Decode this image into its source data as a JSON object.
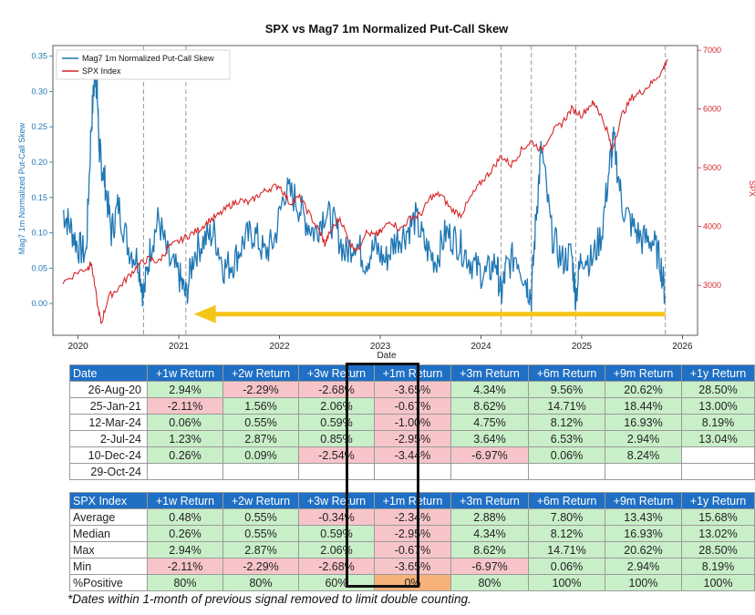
{
  "chart_data": {
    "type": "line",
    "title": "SPX vs Mag7 1m Normalized Put-Call Skew",
    "xlabel": "Date",
    "ylabel_left": "Mag7 1m Normalized Put-Call Skew",
    "ylabel_right": "SPX",
    "xlim": [
      2019.75,
      2026.15
    ],
    "ylim_left": [
      -0.045,
      0.365
    ],
    "ylim_right": [
      2150,
      7080
    ],
    "x_ticks": [
      "2020",
      "2021",
      "2022",
      "2023",
      "2024",
      "2025",
      "2026"
    ],
    "y_ticks_left": [
      "0.00",
      "0.05",
      "0.10",
      "0.15",
      "0.20",
      "0.25",
      "0.30",
      "0.35"
    ],
    "y_ticks_right": [
      "3000",
      "4000",
      "5000",
      "6000",
      "7000"
    ],
    "legend_position": "top-left",
    "colors": {
      "skew": "#1f77b4",
      "spx": "#d62728",
      "arrow": "#f5c518",
      "signal_line": "#999999"
    },
    "signal_dates": [
      2020.65,
      2021.07,
      2024.2,
      2024.5,
      2024.94,
      2025.83
    ],
    "arrow": {
      "x_start": 2025.83,
      "x_end": 2021.15,
      "y": -0.015
    },
    "series": [
      {
        "name": "Mag7 1m Normalized Put-Call Skew",
        "axis": "left",
        "x": [
          2019.85,
          2019.92,
          2020.0,
          2020.08,
          2020.13,
          2020.17,
          2020.19,
          2020.21,
          2020.23,
          2020.27,
          2020.33,
          2020.4,
          2020.5,
          2020.6,
          2020.65,
          2020.72,
          2020.8,
          2020.9,
          2021.0,
          2021.07,
          2021.15,
          2021.25,
          2021.35,
          2021.45,
          2021.55,
          2021.65,
          2021.75,
          2021.85,
          2021.95,
          2022.05,
          2022.15,
          2022.25,
          2022.35,
          2022.45,
          2022.55,
          2022.65,
          2022.75,
          2022.85,
          2022.95,
          2023.05,
          2023.15,
          2023.25,
          2023.35,
          2023.45,
          2023.55,
          2023.65,
          2023.75,
          2023.85,
          2023.95,
          2024.05,
          2024.15,
          2024.2,
          2024.25,
          2024.35,
          2024.45,
          2024.5,
          2024.55,
          2024.6,
          2024.7,
          2024.8,
          2024.9,
          2024.94,
          2025.0,
          2025.1,
          2025.2,
          2025.28,
          2025.32,
          2025.4,
          2025.5,
          2025.6,
          2025.7,
          2025.78,
          2025.83
        ],
        "values": [
          0.13,
          0.11,
          0.08,
          0.07,
          0.25,
          0.33,
          0.3,
          0.22,
          0.2,
          0.17,
          0.1,
          0.14,
          0.08,
          0.06,
          0.01,
          0.08,
          0.12,
          0.06,
          0.04,
          0.01,
          0.07,
          0.09,
          0.1,
          0.05,
          0.06,
          0.09,
          0.1,
          0.07,
          0.09,
          0.16,
          0.15,
          0.12,
          0.1,
          0.13,
          0.11,
          0.07,
          0.09,
          0.06,
          0.08,
          0.06,
          0.09,
          0.1,
          0.12,
          0.08,
          0.06,
          0.1,
          0.09,
          0.07,
          0.05,
          0.04,
          0.06,
          0.01,
          0.05,
          0.07,
          0.03,
          0.01,
          0.13,
          0.22,
          0.1,
          0.06,
          0.07,
          0.01,
          0.07,
          0.06,
          0.1,
          0.2,
          0.23,
          0.14,
          0.11,
          0.09,
          0.09,
          0.06,
          0.01
        ]
      },
      {
        "name": "SPX Index",
        "axis": "right",
        "x": [
          2019.85,
          2020.0,
          2020.1,
          2020.13,
          2020.2,
          2020.23,
          2020.3,
          2020.4,
          2020.5,
          2020.6,
          2020.7,
          2020.8,
          2020.9,
          2021.0,
          2021.1,
          2021.2,
          2021.3,
          2021.4,
          2021.5,
          2021.6,
          2021.7,
          2021.8,
          2021.9,
          2022.0,
          2022.1,
          2022.2,
          2022.3,
          2022.4,
          2022.45,
          2022.5,
          2022.6,
          2022.7,
          2022.78,
          2022.85,
          2022.95,
          2023.0,
          2023.1,
          2023.2,
          2023.3,
          2023.4,
          2023.5,
          2023.6,
          2023.7,
          2023.8,
          2023.9,
          2024.0,
          2024.1,
          2024.2,
          2024.3,
          2024.4,
          2024.5,
          2024.6,
          2024.7,
          2024.8,
          2024.9,
          2025.0,
          2025.1,
          2025.15,
          2025.25,
          2025.3,
          2025.4,
          2025.5,
          2025.6,
          2025.7,
          2025.8,
          2025.85
        ],
        "values": [
          3050,
          3230,
          3300,
          3380,
          2600,
          2350,
          2800,
          2950,
          3150,
          3350,
          3450,
          3400,
          3650,
          3750,
          3850,
          3950,
          4100,
          4200,
          4350,
          4450,
          4400,
          4550,
          4650,
          4700,
          4400,
          4500,
          4200,
          3900,
          3700,
          3900,
          4150,
          3700,
          3600,
          3900,
          3850,
          3900,
          4100,
          3950,
          4150,
          4200,
          4500,
          4550,
          4300,
          4200,
          4500,
          4750,
          4950,
          5200,
          5050,
          5300,
          5450,
          5300,
          5600,
          5750,
          6000,
          5900,
          6100,
          6050,
          5650,
          5300,
          5900,
          6200,
          6300,
          6450,
          6650,
          6850
        ]
      }
    ]
  },
  "table1": {
    "header": [
      "Date",
      "+1w Return",
      "+2w Return",
      "+3w Return",
      "+1m Return",
      "+3m Return",
      "+6m Return",
      "+9m Return",
      "+1y Return"
    ],
    "rows": [
      [
        "26-Aug-20",
        "2.94%",
        "-2.29%",
        "-2.68%",
        "-3.65%",
        "4.34%",
        "9.56%",
        "20.62%",
        "28.50%"
      ],
      [
        "25-Jan-21",
        "-2.11%",
        "1.56%",
        "2.06%",
        "-0.67%",
        "8.62%",
        "14.71%",
        "18.44%",
        "13.00%"
      ],
      [
        "12-Mar-24",
        "0.06%",
        "0.55%",
        "0.59%",
        "-1.00%",
        "4.75%",
        "8.12%",
        "16.93%",
        "8.19%"
      ],
      [
        "2-Jul-24",
        "1.23%",
        "2.87%",
        "0.85%",
        "-2.95%",
        "3.64%",
        "6.53%",
        "2.94%",
        "13.04%"
      ],
      [
        "10-Dec-24",
        "0.26%",
        "0.09%",
        "-2.54%",
        "-3.44%",
        "-6.97%",
        "0.06%",
        "8.24%",
        ""
      ],
      [
        "29-Oct-24",
        "",
        "",
        "",
        "",
        "",
        "",
        "",
        ""
      ]
    ]
  },
  "table2": {
    "header": [
      "SPX Index",
      "+1w Return",
      "+2w Return",
      "+3w Return",
      "+1m Return",
      "+3m Return",
      "+6m Return",
      "+9m Return",
      "+1y Return"
    ],
    "rows": [
      [
        "Average",
        "0.48%",
        "0.55%",
        "-0.34%",
        "-2.34%",
        "2.88%",
        "7.80%",
        "13.43%",
        "15.68%"
      ],
      [
        "Median",
        "0.26%",
        "0.55%",
        "0.59%",
        "-2.95%",
        "4.34%",
        "8.12%",
        "16.93%",
        "13.02%"
      ],
      [
        "Max",
        "2.94%",
        "2.87%",
        "2.06%",
        "-0.67%",
        "8.62%",
        "14.71%",
        "20.62%",
        "28.50%"
      ],
      [
        "Min",
        "-2.11%",
        "-2.29%",
        "-2.68%",
        "-3.65%",
        "-6.97%",
        "0.06%",
        "2.94%",
        "8.19%"
      ],
      [
        "%Positive",
        "80%",
        "80%",
        "60%",
        "0%",
        "80%",
        "100%",
        "100%",
        "100%"
      ]
    ]
  },
  "footnote": "*Dates within 1-month of previous signal removed to limit double counting."
}
